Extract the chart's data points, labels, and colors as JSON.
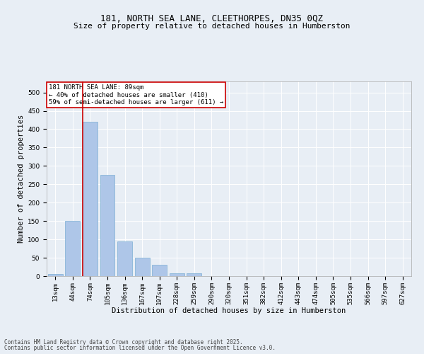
{
  "title1": "181, NORTH SEA LANE, CLEETHORPES, DN35 0QZ",
  "title2": "Size of property relative to detached houses in Humberston",
  "xlabel": "Distribution of detached houses by size in Humberston",
  "ylabel": "Number of detached properties",
  "categories": [
    "13sqm",
    "44sqm",
    "74sqm",
    "105sqm",
    "136sqm",
    "167sqm",
    "197sqm",
    "228sqm",
    "259sqm",
    "290sqm",
    "320sqm",
    "351sqm",
    "382sqm",
    "412sqm",
    "443sqm",
    "474sqm",
    "505sqm",
    "535sqm",
    "566sqm",
    "597sqm",
    "627sqm"
  ],
  "values": [
    5,
    150,
    420,
    275,
    95,
    50,
    30,
    8,
    8,
    0,
    0,
    0,
    0,
    0,
    0,
    0,
    0,
    0,
    0,
    0,
    0
  ],
  "bar_color": "#aec6e8",
  "bar_edge_color": "#7bafd4",
  "vline_x_index": 2,
  "vline_x_offset": -0.42,
  "vline_color": "#cc0000",
  "annotation_text": "181 NORTH SEA LANE: 89sqm\n← 40% of detached houses are smaller (410)\n59% of semi-detached houses are larger (611) →",
  "annotation_box_color": "#ffffff",
  "annotation_box_edge": "#cc0000",
  "ylim": [
    0,
    530
  ],
  "yticks": [
    0,
    50,
    100,
    150,
    200,
    250,
    300,
    350,
    400,
    450,
    500
  ],
  "bg_color": "#e8eef5",
  "plot_bg_color": "#e8eef5",
  "footer_line1": "Contains HM Land Registry data © Crown copyright and database right 2025.",
  "footer_line2": "Contains public sector information licensed under the Open Government Licence v3.0.",
  "title1_fontsize": 9,
  "title2_fontsize": 8,
  "tick_fontsize": 6.5,
  "xlabel_fontsize": 7.5,
  "ylabel_fontsize": 7.5,
  "annotation_fontsize": 6.5,
  "footer_fontsize": 5.5
}
